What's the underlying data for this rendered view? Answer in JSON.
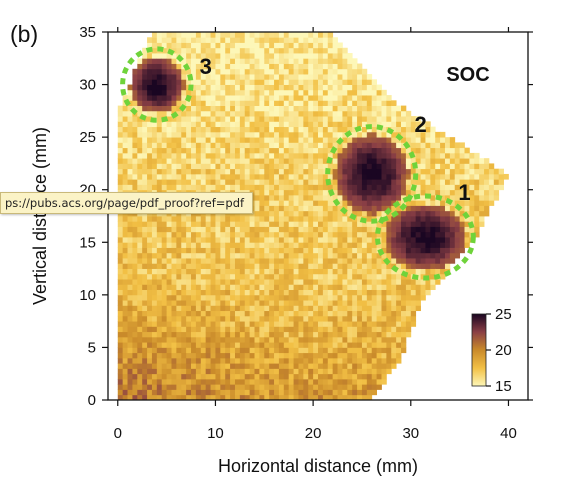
{
  "panel_label": "(b)",
  "tooltip_url": "ps://pubs.acs.org/page/pdf_proof?ref=pdf",
  "chart_data": {
    "type": "heatmap",
    "title": "SOC",
    "xlabel": "Horizontal distance (mm)",
    "ylabel": "Vertical distance (mm)",
    "xlim": [
      -1,
      42
    ],
    "ylim": [
      0,
      35
    ],
    "xticks": [
      0,
      10,
      20,
      30,
      40
    ],
    "yticks": [
      0,
      5,
      10,
      15,
      20,
      25,
      30,
      35
    ],
    "grid": false,
    "colorbar": {
      "range": [
        15,
        25
      ],
      "ticks": [
        25,
        20,
        15
      ],
      "colors": [
        "#fdf7b8",
        "#f2c045",
        "#c98a2a",
        "#8a3f45",
        "#1a0622"
      ]
    },
    "annotations": [
      {
        "label": "1",
        "x": 35.5,
        "y": 19
      },
      {
        "label": "2",
        "x": 31,
        "y": 25.5
      },
      {
        "label": "3",
        "x": 9,
        "y": 31
      }
    ],
    "outline": [
      [
        3.5,
        35
      ],
      [
        22,
        35
      ],
      [
        28,
        28.5
      ],
      [
        40,
        21.5
      ],
      [
        37,
        16
      ],
      [
        31,
        9
      ],
      [
        29,
        4
      ],
      [
        26,
        0
      ],
      [
        0,
        0
      ],
      [
        0,
        27.5
      ],
      [
        3.5,
        35
      ]
    ],
    "regions": [
      {
        "label": "1",
        "center_x": 31.5,
        "center_y": 15.5,
        "rx": 4.2,
        "ry": 3.2,
        "value": 25
      },
      {
        "label": "2",
        "center_x": 26,
        "center_y": 21.5,
        "rx": 3.8,
        "ry": 3.8,
        "value": 25
      },
      {
        "label": "3",
        "center_x": 4,
        "center_y": 30,
        "rx": 2.8,
        "ry": 2.7,
        "value": 25
      }
    ],
    "field": {
      "base_value": 17,
      "min_value": 15,
      "max_value": 25
    }
  }
}
